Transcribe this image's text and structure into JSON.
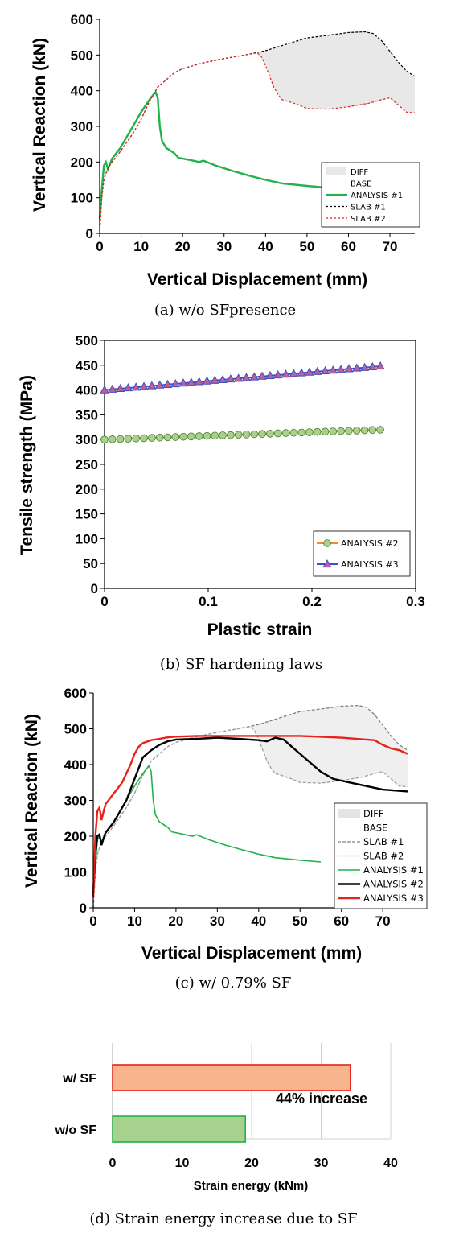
{
  "captions": [
    "(a) w/o SFpresence",
    "(b) SF hardening laws",
    "(c) w/ 0.79% SF",
    "(d) Strain energy increase due to SF"
  ],
  "chart_data": [
    {
      "type": "line",
      "xlabel": "Vertical Displacement (mm)",
      "ylabel": "Vertical Reaction (kN)",
      "xlim": [
        0,
        76
      ],
      "ylim": [
        0,
        600
      ],
      "xticks": [
        0,
        10,
        20,
        30,
        40,
        50,
        60,
        70
      ],
      "yticks": [
        0,
        100,
        200,
        300,
        400,
        500,
        600
      ],
      "legend": [
        "DIFF",
        "BASE",
        "ANALYSIS #1",
        "SLAB #1",
        "SLAB #2"
      ],
      "legend_position": "bottom-right",
      "diff_fill": "#e8e8e8",
      "series": [
        {
          "name": "ANALYSIS #1",
          "color": "#22b14c",
          "style": "solid",
          "x": [
            0,
            0.5,
            1,
            1.5,
            2,
            3,
            5,
            8,
            10,
            12,
            13,
            13.5,
            14,
            14.5,
            15,
            16,
            18,
            19,
            22,
            24,
            25,
            28,
            32,
            36,
            40,
            44,
            50,
            55
          ],
          "y": [
            40,
            120,
            190,
            200,
            180,
            210,
            240,
            300,
            340,
            375,
            390,
            396,
            380,
            300,
            260,
            240,
            225,
            212,
            205,
            200,
            204,
            190,
            175,
            162,
            150,
            140,
            133,
            128
          ]
        },
        {
          "name": "SLAB #1",
          "color": "#000000",
          "style": "dashed",
          "x": [
            0,
            0.5,
            1,
            2,
            3,
            5,
            8,
            10,
            12,
            14,
            16,
            18,
            20,
            25,
            30,
            35,
            40,
            45,
            50,
            55,
            60,
            64,
            66,
            68,
            70,
            72,
            74,
            76
          ],
          "y": [
            0,
            100,
            150,
            185,
            200,
            230,
            280,
            320,
            370,
            410,
            430,
            450,
            462,
            478,
            490,
            500,
            512,
            530,
            548,
            555,
            563,
            565,
            560,
            540,
            510,
            480,
            455,
            440
          ]
        },
        {
          "name": "SLAB #2",
          "color": "#e8231b",
          "style": "dashed",
          "x": [
            0,
            0.5,
            1,
            2,
            3,
            5,
            8,
            10,
            12,
            14,
            16,
            18,
            20,
            25,
            30,
            35,
            38,
            39,
            40,
            41,
            42,
            43,
            44,
            46,
            48,
            50,
            55,
            60,
            65,
            68,
            70,
            72,
            74,
            76
          ],
          "y": [
            0,
            100,
            150,
            185,
            200,
            230,
            280,
            320,
            370,
            410,
            430,
            450,
            462,
            478,
            490,
            500,
            506,
            495,
            470,
            440,
            410,
            390,
            375,
            368,
            360,
            350,
            348,
            355,
            365,
            375,
            380,
            360,
            340,
            338
          ]
        }
      ]
    },
    {
      "type": "line",
      "xlabel": "Plastic strain",
      "ylabel": "Tensile strength (MPa)",
      "xlim": [
        0,
        0.3
      ],
      "ylim": [
        0,
        500
      ],
      "xticks": [
        0,
        0.1,
        0.2,
        0.3
      ],
      "yticks": [
        0,
        50,
        100,
        150,
        200,
        250,
        300,
        350,
        400,
        450,
        500
      ],
      "legend": [
        "ANALYSIS #2",
        "ANALYSIS #3"
      ],
      "legend_position": "bottom-right",
      "series": [
        {
          "name": "ANALYSIS #2",
          "color": "#f28a30",
          "marker": "circle",
          "marker_fill": "#a9d18e",
          "x0": 0,
          "x1": 0.266,
          "y0": 300,
          "y1": 320,
          "points": 36
        },
        {
          "name": "ANALYSIS #3",
          "color": "#3f4fc9",
          "marker": "triangle",
          "marker_fill": "#c06090",
          "x0": 0,
          "x1": 0.266,
          "y0": 400,
          "y1": 448,
          "points": 36
        }
      ]
    },
    {
      "type": "line",
      "xlabel": "Vertical Displacement (mm)",
      "ylabel": "Vertical Reaction (kN)",
      "xlim": [
        0,
        76
      ],
      "ylim": [
        0,
        600
      ],
      "xticks": [
        0,
        10,
        20,
        30,
        40,
        50,
        60,
        70
      ],
      "yticks": [
        0,
        100,
        200,
        300,
        400,
        500,
        600
      ],
      "legend": [
        "DIFF",
        "BASE",
        "SLAB #1",
        "SLAB #2",
        "ANALYSIS #1",
        "ANALYSIS #2",
        "ANALYSIS #3"
      ],
      "legend_position": "bottom-right",
      "diff_fill": "#efefef",
      "series": [
        {
          "name": "SLAB #1",
          "color": "#808080",
          "style": "dashed",
          "ref": "slab1"
        },
        {
          "name": "SLAB #2",
          "color": "#a0a0a0",
          "style": "dashed",
          "ref": "slab2"
        },
        {
          "name": "ANALYSIS #1",
          "color": "#22b14c",
          "style": "solid",
          "ref": "a1"
        },
        {
          "name": "ANALYSIS #2",
          "color": "#000000",
          "style": "solid",
          "x": [
            0,
            0.5,
            1,
            1.5,
            2,
            2.5,
            3,
            5,
            8,
            10,
            12,
            14,
            16,
            18,
            20,
            25,
            30,
            35,
            40,
            42,
            44,
            46,
            48,
            50,
            52,
            55,
            58,
            62,
            66,
            70,
            76
          ],
          "y": [
            40,
            150,
            200,
            205,
            175,
            195,
            210,
            240,
            300,
            360,
            420,
            440,
            455,
            465,
            470,
            472,
            475,
            472,
            468,
            465,
            475,
            470,
            450,
            430,
            410,
            380,
            360,
            350,
            340,
            330,
            325
          ]
        },
        {
          "name": "ANALYSIS #3",
          "color": "#e8231b",
          "style": "solid",
          "x": [
            0,
            0.5,
            1,
            1.5,
            2,
            2.5,
            3,
            5,
            7,
            9,
            10,
            11,
            12,
            14,
            16,
            18,
            20,
            25,
            30,
            35,
            40,
            50,
            60,
            66,
            68,
            70,
            72,
            74,
            76
          ],
          "y": [
            30,
            200,
            270,
            280,
            245,
            270,
            290,
            320,
            350,
            400,
            430,
            450,
            460,
            468,
            472,
            476,
            478,
            480,
            480,
            480,
            480,
            480,
            475,
            470,
            468,
            455,
            445,
            440,
            430
          ]
        }
      ]
    },
    {
      "type": "bar",
      "orientation": "horizontal",
      "categories": [
        "w/ SF",
        "w/o SF"
      ],
      "values": [
        34.2,
        19.1
      ],
      "colors": [
        "#f8b48c",
        "#a9d18e"
      ],
      "edge_colors": [
        "#e8231b",
        "#22b14c"
      ],
      "xlabel": "Strain energy (kNm)",
      "xlim": [
        0,
        40
      ],
      "xticks": [
        0,
        10,
        20,
        30,
        40
      ],
      "annotation": "44% increase"
    }
  ]
}
